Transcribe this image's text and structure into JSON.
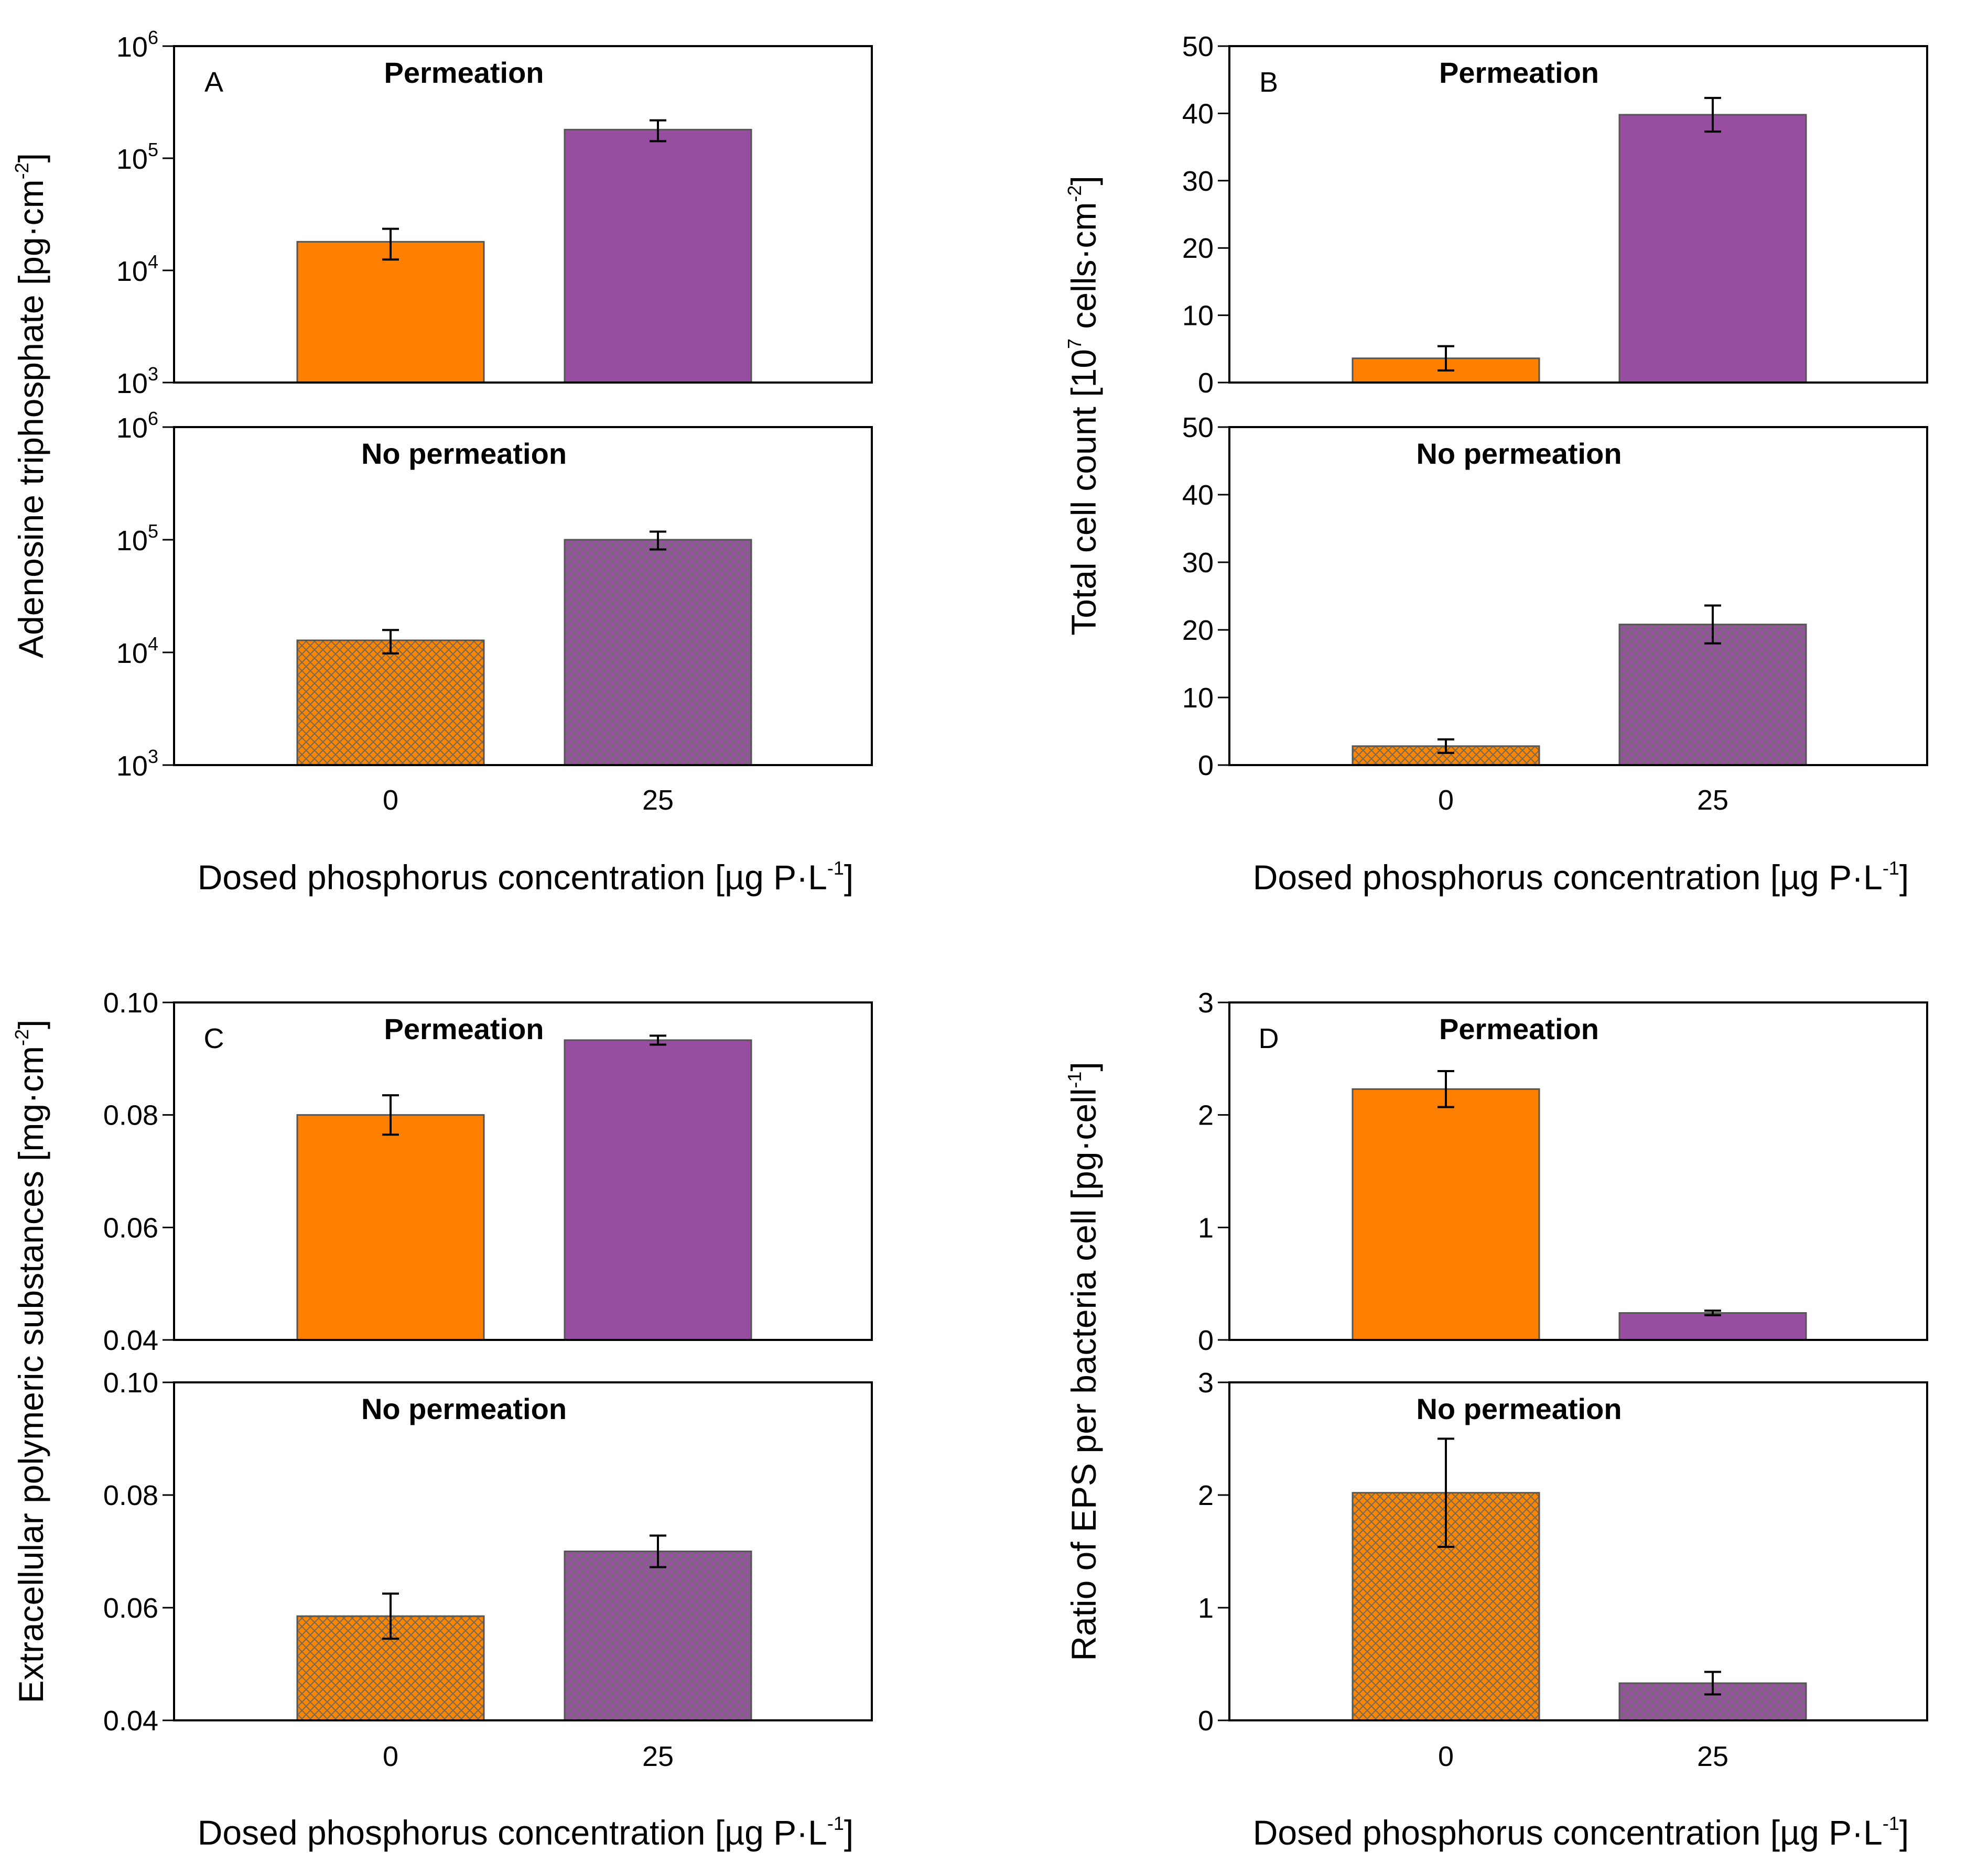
{
  "chart_data": [
    {
      "panel": "A",
      "type": "bar",
      "ylabel": "Adenosine triphosphate [pg·cm",
      "ylabel_exp": "-2",
      "ylabel_tail": "]",
      "xlabel": "Dosed phosphorus concentration [µg P·L",
      "xlabel_exp": "-1",
      "xlabel_tail": "]",
      "categories": [
        "0",
        "25"
      ],
      "scale": "log",
      "ylim": [
        1000,
        1000000
      ],
      "y_ticks": [
        {
          "value": 1000,
          "base": "10",
          "exp": "3"
        },
        {
          "value": 10000,
          "base": "10",
          "exp": "4"
        },
        {
          "value": 100000,
          "base": "10",
          "exp": "5"
        },
        {
          "value": 1000000,
          "base": "10",
          "exp": "6"
        }
      ],
      "subplots": [
        {
          "title": "Permeation",
          "pattern": "solid",
          "values": [
            18000,
            180000
          ],
          "errors": [
            5500,
            38000
          ]
        },
        {
          "title": "No permeation",
          "pattern": "hatched",
          "values": [
            12800,
            100000
          ],
          "errors": [
            3000,
            18000
          ]
        }
      ]
    },
    {
      "panel": "B",
      "type": "bar",
      "ylabel": "Total cell count [10",
      "ylabel_exp": "7",
      "ylabel_mid": " cells·cm",
      "ylabel_exp2": "-2",
      "ylabel_tail": "]",
      "xlabel": "Dosed phosphorus concentration [µg P·L",
      "xlabel_exp": "-1",
      "xlabel_tail": "]",
      "categories": [
        "0",
        "25"
      ],
      "scale": "linear",
      "ylim": [
        0,
        50
      ],
      "y_ticks": [
        {
          "value": 0,
          "label": "0"
        },
        {
          "value": 10,
          "label": "10"
        },
        {
          "value": 20,
          "label": "20"
        },
        {
          "value": 30,
          "label": "30"
        },
        {
          "value": 40,
          "label": "40"
        },
        {
          "value": 50,
          "label": "50"
        }
      ],
      "subplots": [
        {
          "title": "Permeation",
          "pattern": "solid",
          "values": [
            3.6,
            39.8
          ],
          "errors": [
            1.8,
            2.5
          ]
        },
        {
          "title": "No permeation",
          "pattern": "hatched",
          "values": [
            2.8,
            20.8
          ],
          "errors": [
            1.0,
            2.8
          ]
        }
      ]
    },
    {
      "panel": "C",
      "type": "bar",
      "ylabel": "Extracellular polymeric substances [mg·cm",
      "ylabel_exp": "-2",
      "ylabel_tail": "]",
      "xlabel": "Dosed phosphorus concentration [µg P·L",
      "xlabel_exp": "-1",
      "xlabel_tail": "]",
      "categories": [
        "0",
        "25"
      ],
      "scale": "linear",
      "ylim": [
        0.04,
        0.1
      ],
      "y_ticks": [
        {
          "value": 0.04,
          "label": "0.04"
        },
        {
          "value": 0.06,
          "label": "0.06"
        },
        {
          "value": 0.08,
          "label": "0.08"
        },
        {
          "value": 0.1,
          "label": "0.10"
        }
      ],
      "subplots": [
        {
          "title": "Permeation",
          "pattern": "solid",
          "values": [
            0.08,
            0.0933
          ],
          "errors": [
            0.0035,
            0.0008
          ]
        },
        {
          "title": "No permeation",
          "pattern": "hatched",
          "values": [
            0.0585,
            0.07
          ],
          "errors": [
            0.004,
            0.0028
          ]
        }
      ]
    },
    {
      "panel": "D",
      "type": "bar",
      "ylabel": "Ratio of EPS per bacteria cell [pg·cell",
      "ylabel_exp": "-1",
      "ylabel_tail": "]",
      "xlabel": "Dosed phosphorus concentration [µg P·L",
      "xlabel_exp": "-1",
      "xlabel_tail": "]",
      "categories": [
        "0",
        "25"
      ],
      "scale": "linear",
      "ylim": [
        0,
        3
      ],
      "y_ticks": [
        {
          "value": 0,
          "label": "0"
        },
        {
          "value": 1,
          "label": "1"
        },
        {
          "value": 2,
          "label": "2"
        },
        {
          "value": 3,
          "label": "3"
        }
      ],
      "subplots": [
        {
          "title": "Permeation",
          "pattern": "solid",
          "values": [
            2.23,
            0.24
          ],
          "errors": [
            0.16,
            0.02
          ]
        },
        {
          "title": "No permeation",
          "pattern": "hatched",
          "values": [
            2.02,
            0.33
          ],
          "errors": [
            0.48,
            0.1
          ]
        }
      ]
    }
  ],
  "colors": {
    "orange": "#FF8000",
    "purple": "#974EA0",
    "hatch_orange_bg": "#FF8500",
    "hatch_purple_bg": "#9A4FA3",
    "hatch_line": "#777777",
    "bar_edge": "#555555"
  }
}
